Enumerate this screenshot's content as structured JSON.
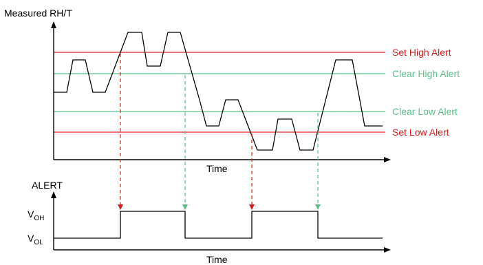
{
  "colors": {
    "set": "#d62020",
    "clear": "#5bbf8a",
    "axis": "#000000"
  },
  "top_plot": {
    "y_axis_label": "Measured RH/T",
    "x_axis_label": "Time",
    "thresholds": {
      "set_high": "Set High Alert",
      "clear_high": "Clear High Alert",
      "clear_low": "Clear Low Alert",
      "set_low": "Set Low Alert"
    }
  },
  "bottom_plot": {
    "y_axis_label": "ALERT",
    "x_axis_label": "Time",
    "levels": {
      "high": {
        "main": "V",
        "sub": "OH"
      },
      "low": {
        "main": "V",
        "sub": "OL"
      }
    }
  }
}
